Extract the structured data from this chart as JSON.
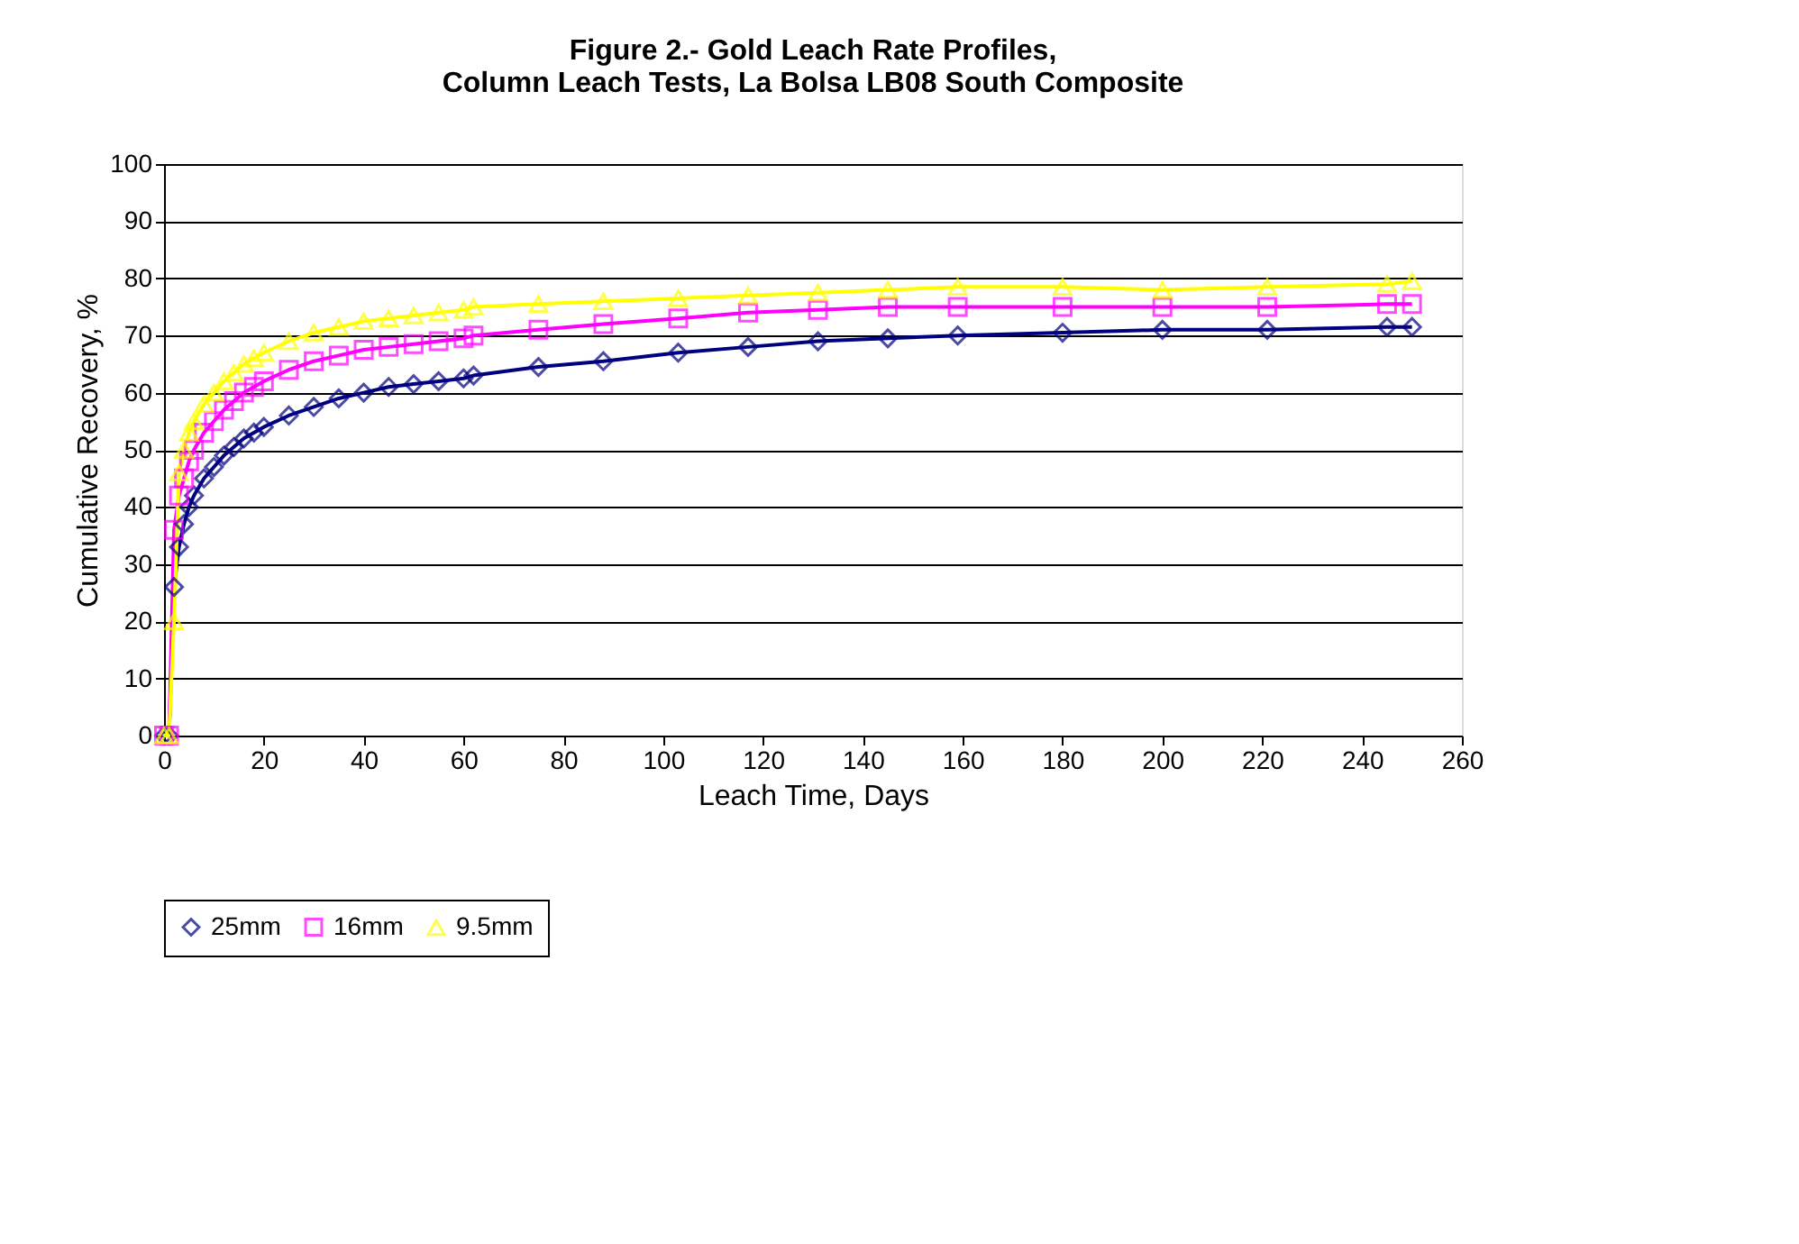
{
  "chart_data": {
    "type": "line",
    "title": [
      "Figure 2.- Gold Leach Rate Profiles,",
      "Column Leach Tests, La Bolsa LB08 South Composite"
    ],
    "xlabel": "Leach Time, Days",
    "ylabel": "Cumulative Recovery, %",
    "x": [
      0,
      1,
      2,
      3,
      4,
      5,
      6,
      8,
      10,
      12,
      14,
      16,
      18,
      20,
      25,
      30,
      35,
      40,
      45,
      50,
      55,
      60,
      62,
      75,
      88,
      103,
      117,
      131,
      145,
      159,
      180,
      200,
      221,
      245,
      250
    ],
    "series": [
      {
        "name": "25mm",
        "color": "#000080",
        "marker": "diamond",
        "values": [
          0,
          0,
          26,
          33,
          37,
          40,
          42,
          45,
          47,
          49,
          50.5,
          52,
          53,
          54,
          56,
          57.5,
          59,
          60,
          61,
          61.5,
          62,
          62.5,
          63,
          64.5,
          65.5,
          67,
          68,
          69,
          69.5,
          70,
          70.5,
          71,
          71,
          71.5,
          71.5
        ]
      },
      {
        "name": "16mm",
        "color": "#ff00ff",
        "marker": "square",
        "values": [
          0,
          0,
          36,
          42,
          45,
          48,
          50,
          53,
          55,
          57,
          58.5,
          60,
          61,
          62,
          64,
          65.5,
          66.5,
          67.5,
          68,
          68.5,
          69,
          69.5,
          70,
          71,
          72,
          73,
          74,
          74.5,
          75,
          75,
          75,
          75,
          75,
          75.5,
          75.5
        ]
      },
      {
        "name": "9.5mm",
        "color": "#ffff00",
        "marker": "triangle",
        "values": [
          0,
          0,
          20,
          46,
          50,
          53,
          55,
          58,
          60,
          62,
          63.5,
          65,
          66,
          67,
          69,
          70.5,
          71.5,
          72.5,
          73,
          73.5,
          74,
          74.5,
          75,
          75.5,
          76,
          76.5,
          77,
          77.5,
          78,
          78.5,
          78.5,
          78,
          78.5,
          79,
          79.5
        ]
      }
    ],
    "xlim": [
      0,
      260
    ],
    "xticks": [
      0,
      20,
      40,
      60,
      80,
      100,
      120,
      140,
      160,
      180,
      200,
      220,
      240,
      260
    ],
    "ylim": [
      0,
      100
    ],
    "yticks": [
      0,
      10,
      20,
      30,
      40,
      50,
      60,
      70,
      80,
      90,
      100
    ],
    "grid": "y",
    "legend": "bottom",
    "line_style": "solid"
  }
}
